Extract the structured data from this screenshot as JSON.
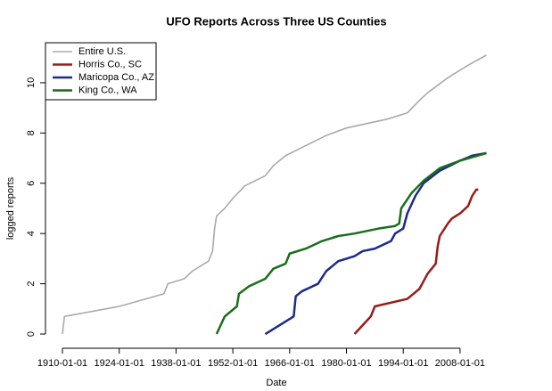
{
  "chart_data": {
    "type": "line",
    "title": "UFO Reports Across Three US Counties",
    "x_label": "Date",
    "y_label": "logged reports",
    "xlim": [
      1906,
      2016
    ],
    "ylim": [
      -0.35,
      11.5
    ],
    "xticks": [
      {
        "value": 1910,
        "label": "1910-01-01"
      },
      {
        "value": 1924,
        "label": "1924-01-01"
      },
      {
        "value": 1938,
        "label": "1938-01-01"
      },
      {
        "value": 1952,
        "label": "1952-01-01"
      },
      {
        "value": 1966,
        "label": "1966-01-01"
      },
      {
        "value": 1980,
        "label": "1980-01-01"
      },
      {
        "value": 1994,
        "label": "1994-01-01"
      },
      {
        "value": 2008,
        "label": "2008-01-01"
      }
    ],
    "yticks": [
      0,
      2,
      4,
      6,
      8,
      10
    ],
    "legend": "top-left",
    "series": [
      {
        "name": "Entire U.S.",
        "color": "#aaaaaa",
        "x": [
          1910,
          1910.5,
          1924,
          1935,
          1936,
          1940,
          1942,
          1944,
          1946,
          1947,
          1947.5,
          1948,
          1950,
          1952,
          1955,
          1960,
          1962,
          1965,
          1970,
          1975,
          1980,
          1990,
          1995,
          1998,
          2000,
          2005,
          2010,
          2014.5
        ],
        "values": [
          0,
          0.7,
          1.1,
          1.6,
          2.0,
          2.2,
          2.5,
          2.7,
          2.9,
          3.3,
          4.2,
          4.7,
          5.0,
          5.4,
          5.9,
          6.3,
          6.7,
          7.1,
          7.5,
          7.9,
          8.2,
          8.55,
          8.8,
          9.3,
          9.6,
          10.2,
          10.7,
          11.1
        ]
      },
      {
        "name": "Horris Co., SC",
        "color": "#9c1a1a",
        "x": [
          1982,
          1986,
          1987,
          1995,
          1998,
          2000,
          2002,
          2002.5,
          2003,
          2005,
          2006,
          2008,
          2010,
          2011,
          2012,
          2012.5
        ],
        "values": [
          0,
          0.7,
          1.1,
          1.4,
          1.8,
          2.4,
          2.8,
          3.5,
          3.9,
          4.4,
          4.6,
          4.8,
          5.1,
          5.5,
          5.75,
          5.75
        ]
      },
      {
        "name": "Maricopa Co., AZ",
        "color": "#1c2a8c",
        "x": [
          1960,
          1967,
          1967.5,
          1969,
          1973,
          1975,
          1978,
          1980,
          1982,
          1984,
          1987,
          1991,
          1992,
          1994,
          1995,
          1997,
          1999,
          2003,
          2008,
          2011,
          2014.5
        ],
        "values": [
          0,
          0.7,
          1.5,
          1.7,
          2.0,
          2.5,
          2.9,
          3.0,
          3.1,
          3.3,
          3.4,
          3.7,
          4.0,
          4.2,
          4.8,
          5.5,
          6.0,
          6.5,
          6.9,
          7.1,
          7.2
        ]
      },
      {
        "name": "King Co., WA",
        "color": "#1a6e1a",
        "x": [
          1948,
          1950,
          1953,
          1953.5,
          1956,
          1960,
          1962,
          1965,
          1966,
          1970,
          1974,
          1978,
          1982,
          1988,
          1992,
          1993,
          1993.5,
          1996,
          1999,
          2003,
          2008,
          2014.5
        ],
        "values": [
          0,
          0.7,
          1.1,
          1.6,
          1.9,
          2.2,
          2.6,
          2.8,
          3.2,
          3.4,
          3.7,
          3.9,
          4.0,
          4.2,
          4.3,
          4.4,
          5.0,
          5.6,
          6.1,
          6.6,
          6.9,
          7.2
        ]
      }
    ]
  }
}
